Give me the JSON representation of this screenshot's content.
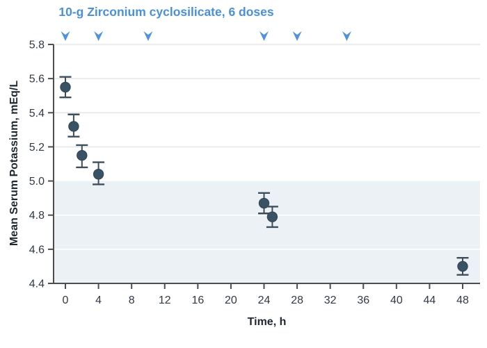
{
  "chart_data": {
    "type": "scatter",
    "title": "10-g Zirconium cyclosilicate, 6 doses",
    "xlabel": "Time, h",
    "ylabel": "Mean Serum Potassium, mEq/L",
    "xlim": [
      -1.5,
      50
    ],
    "ylim": [
      4.4,
      5.8
    ],
    "x_ticks": [
      0,
      4,
      8,
      12,
      16,
      20,
      24,
      28,
      32,
      36,
      40,
      44,
      48
    ],
    "y_ticks": [
      "4.4",
      "4.6",
      "4.8",
      "5.0",
      "5.2",
      "5.4",
      "5.6",
      "5.8"
    ],
    "grid": true,
    "shaded_band": {
      "y_from": 4.4,
      "y_to": 5.0
    },
    "dose_arrow_times": [
      0,
      4,
      10,
      24,
      28,
      34
    ],
    "series": [
      {
        "name": "10-g Zirconium cyclosilicate",
        "points": [
          {
            "t": 0,
            "k": 5.55,
            "lo": 5.49,
            "hi": 5.61
          },
          {
            "t": 1,
            "k": 5.32,
            "lo": 5.26,
            "hi": 5.39
          },
          {
            "t": 2,
            "k": 5.15,
            "lo": 5.08,
            "hi": 5.21
          },
          {
            "t": 4,
            "k": 5.04,
            "lo": 4.98,
            "hi": 5.11
          },
          {
            "t": 24,
            "k": 4.87,
            "lo": 4.81,
            "hi": 4.93
          },
          {
            "t": 25,
            "k": 4.79,
            "lo": 4.73,
            "hi": 4.85
          },
          {
            "t": 48,
            "k": 4.5,
            "lo": 4.45,
            "hi": 4.55
          }
        ]
      }
    ]
  },
  "colors": {
    "accent_blue": "#4a90d8",
    "arrow_blue": "#4f93da",
    "marker_fill": "#3a5364",
    "marker_stroke": "#2f4453",
    "error_bar": "#3e4d5a",
    "band_fill": "#ecf1f5",
    "gridline_on_white": "#e7e7e7",
    "gridline_on_band": "#ffffff",
    "axis_line": "#4d4d4d",
    "tick_text": "#2f3a44",
    "axis_title_text": "#1c2730"
  }
}
